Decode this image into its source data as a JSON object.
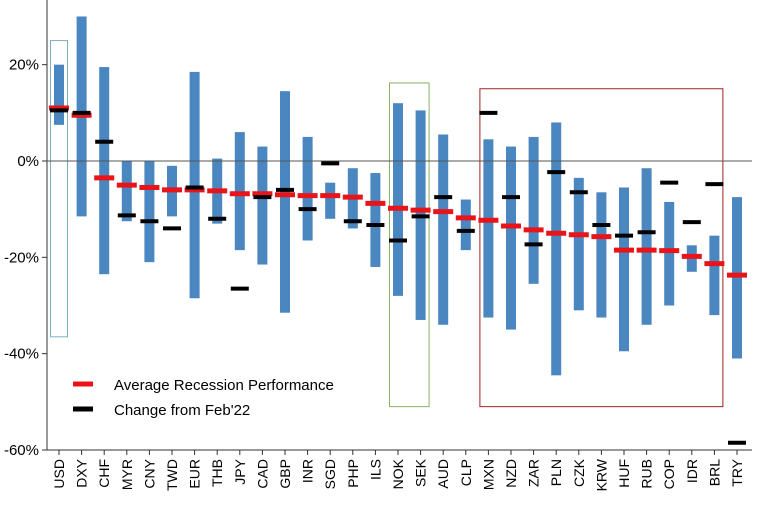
{
  "chart_data": {
    "type": "bar",
    "title": "",
    "xlabel": "",
    "ylabel": "",
    "ylim": [
      -60,
      35
    ],
    "yticks": [
      -60,
      -40,
      -20,
      0,
      20
    ],
    "ytick_labels": [
      "-60%",
      "-40%",
      "-20%",
      "0%",
      "20%"
    ],
    "grid": false,
    "legend_position": "bottom-left",
    "colors": {
      "range_bar": "#4a86c0",
      "average": "#e8141a",
      "change": "#000000",
      "zero_line": "#555555"
    },
    "categories": [
      "USD",
      "DXY",
      "CHF",
      "MYR",
      "CNY",
      "TWD",
      "EUR",
      "THB",
      "JPY",
      "CAD",
      "GBP",
      "INR",
      "SGD",
      "PHP",
      "ILS",
      "NOK",
      "SEK",
      "AUD",
      "CLP",
      "MXN",
      "NZD",
      "ZAR",
      "PLN",
      "CZK",
      "KRW",
      "HUF",
      "RUB",
      "COP",
      "IDR",
      "BRL",
      "TRY"
    ],
    "series": [
      {
        "kind": "range",
        "low": [
          7.5,
          -11.5,
          -23.5,
          -12.5,
          -21,
          -11.5,
          -28.5,
          -13,
          -18.5,
          -21.5,
          -31.5,
          -16.5,
          -12,
          -14,
          -22,
          -28,
          -33,
          -34,
          -18.5,
          -32.5,
          -35,
          -25.5,
          -44.5,
          -31,
          -32.5,
          -39.5,
          -34,
          -30,
          -23,
          -32,
          -41
        ],
        "high": [
          20,
          30,
          19.5,
          0,
          0,
          -1,
          18.5,
          0.5,
          6,
          3,
          14.5,
          5,
          -4.5,
          -1.5,
          -2.5,
          12,
          10.5,
          5.5,
          -8,
          4.5,
          3,
          5,
          8,
          -3.5,
          -6.5,
          -5.5,
          -1.5,
          -8.5,
          -17.5,
          -15.5,
          -7.5
        ]
      },
      {
        "name": "Average Recession Performance",
        "kind": "average",
        "values": [
          11,
          9.5,
          -3.5,
          -5,
          -5.5,
          -6,
          -6,
          -6.2,
          -6.8,
          -6.8,
          -7,
          -7.2,
          -7.2,
          -7.5,
          -8.8,
          -9.8,
          -10.2,
          -10.5,
          -11.8,
          -12.3,
          -13.5,
          -14.3,
          -15,
          -15.3,
          -15.7,
          -18.5,
          -18.5,
          -18.6,
          -19.8,
          -21.3,
          -23.7
        ]
      },
      {
        "name": "Change from Feb'22",
        "kind": "change",
        "values": [
          10.5,
          10,
          4,
          -11.3,
          -12.5,
          -14,
          -5.5,
          -12,
          -26.5,
          -7.5,
          -6,
          -10,
          -0.5,
          -12.5,
          -13.3,
          -16.5,
          -11.5,
          -7.5,
          -14.5,
          10,
          -7.5,
          -17.3,
          -2.3,
          -6.5,
          -13.3,
          -15.5,
          -14.8,
          -4.5,
          -12.7,
          -4.8,
          -58.5
        ]
      }
    ],
    "highlight_boxes": [
      {
        "from": "USD",
        "to": "USD",
        "ymin": -36.5,
        "ymax": 25,
        "color": "#7bafc0"
      },
      {
        "from": "NOK",
        "to": "SEK",
        "ymin": -51,
        "ymax": 16.2,
        "color": "#8ab060"
      },
      {
        "from": "MXN",
        "to": "BRL",
        "ymin": -51,
        "ymax": 15,
        "color": "#a02020"
      }
    ]
  }
}
